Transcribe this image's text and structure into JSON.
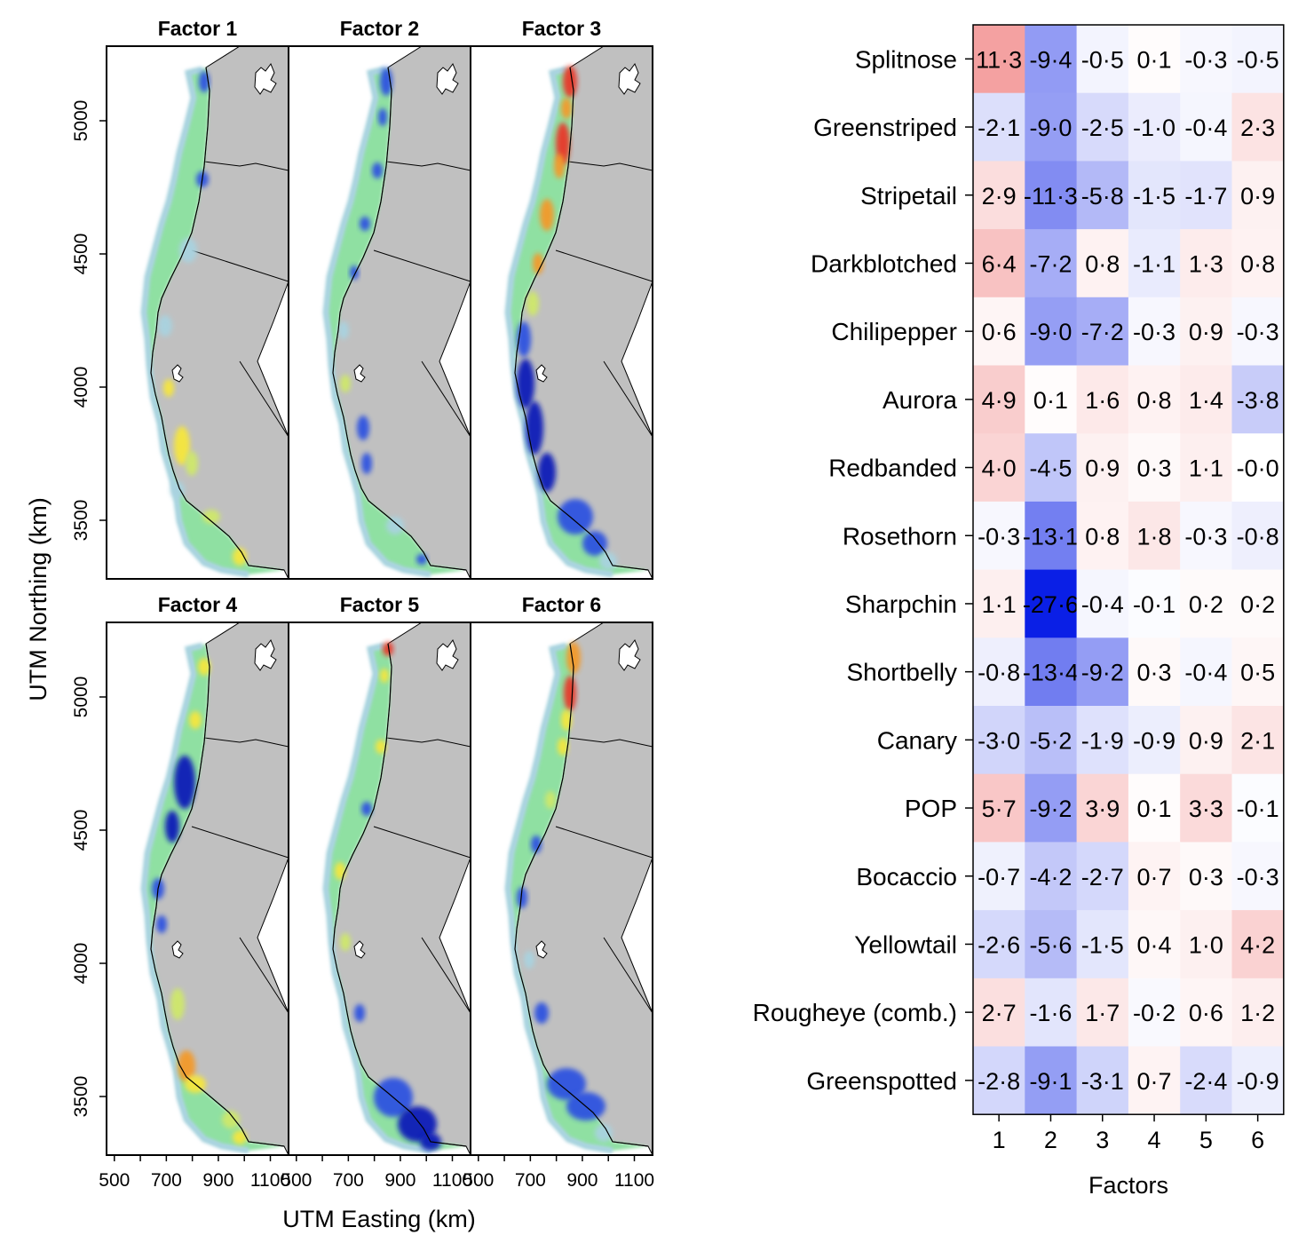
{
  "chart_data": [
    {
      "type": "map",
      "panels": [
        "Factor 1",
        "Factor 2",
        "Factor 3",
        "Factor 4",
        "Factor 5",
        "Factor 6"
      ],
      "xlabel": "UTM Easting (km)",
      "ylabel": "UTM Northing (km)",
      "x_ticks": [
        500,
        700,
        900,
        1100
      ],
      "y_ticks": [
        3500,
        4000,
        4500,
        5000
      ],
      "xlim": [
        470,
        1170
      ],
      "ylim": [
        3280,
        5280
      ],
      "colors": {
        "land": "#c0c0c0",
        "blue_dark": "#0a1fb8",
        "blue": "#2f52e0",
        "lightblue": "#a9d3e0",
        "green": "#8fe0a2",
        "yellowgreen": "#cfe86a",
        "yellow": "#f6e63c",
        "orange": "#f39a2c",
        "red": "#e8392a"
      }
    },
    {
      "type": "heatmap",
      "xlabel": "Factors",
      "ylabel": "",
      "columns": [
        "1",
        "2",
        "3",
        "4",
        "5",
        "6"
      ],
      "rows": [
        "Splitnose",
        "Greenstriped",
        "Stripetail",
        "Darkblotched",
        "Chilipepper",
        "Aurora",
        "Redbanded",
        "Rosethorn",
        "Sharpchin",
        "Shortbelly",
        "Canary",
        "POP",
        "Bocaccio",
        "Yellowtail",
        "Rougheye (comb.)",
        "Greenspotted"
      ],
      "values": [
        [
          11.3,
          -9.4,
          -0.5,
          0.1,
          -0.3,
          -0.5
        ],
        [
          -2.1,
          -9.0,
          -2.5,
          -1.0,
          -0.4,
          2.3
        ],
        [
          2.9,
          -11.3,
          -5.8,
          -1.5,
          -1.7,
          0.9
        ],
        [
          6.4,
          -7.2,
          0.8,
          -1.1,
          1.3,
          0.8
        ],
        [
          0.6,
          -9.0,
          -7.2,
          -0.3,
          0.9,
          -0.3
        ],
        [
          4.9,
          0.1,
          1.6,
          0.8,
          1.4,
          -3.8
        ],
        [
          4.0,
          -4.5,
          0.9,
          0.3,
          1.1,
          -0.0
        ],
        [
          -0.3,
          -13.1,
          0.8,
          1.8,
          -0.3,
          -0.8
        ],
        [
          1.1,
          -27.6,
          -0.4,
          -0.1,
          0.2,
          0.2
        ],
        [
          -0.8,
          -13.4,
          -9.2,
          0.3,
          -0.4,
          0.5
        ],
        [
          -3.0,
          -5.2,
          -1.9,
          -0.9,
          0.9,
          2.1
        ],
        [
          5.7,
          -9.2,
          3.9,
          0.1,
          3.3,
          -0.1
        ],
        [
          -0.7,
          -4.2,
          -2.7,
          0.7,
          0.3,
          -0.3
        ],
        [
          -2.6,
          -5.6,
          -1.5,
          0.4,
          1.0,
          4.2
        ],
        [
          2.7,
          -1.6,
          1.7,
          -0.2,
          0.6,
          1.2
        ],
        [
          -2.8,
          -9.1,
          -3.1,
          0.7,
          -2.4,
          -0.9
        ]
      ],
      "labels": [
        [
          "11·3",
          "-9·4",
          "-0·5",
          "0·1",
          "-0·3",
          "-0·5"
        ],
        [
          "-2·1",
          "-9·0",
          "-2·5",
          "-1·0",
          "-0·4",
          "2·3"
        ],
        [
          "2·9",
          "-11·3",
          "-5·8",
          "-1·5",
          "-1·7",
          "0·9"
        ],
        [
          "6·4",
          "-7·2",
          "0·8",
          "-1·1",
          "1·3",
          "0·8"
        ],
        [
          "0·6",
          "-9·0",
          "-7·2",
          "-0·3",
          "0·9",
          "-0·3"
        ],
        [
          "4·9",
          "0·1",
          "1·6",
          "0·8",
          "1·4",
          "-3·8"
        ],
        [
          "4·0",
          "-4·5",
          "0·9",
          "0·3",
          "1·1",
          "-0·0"
        ],
        [
          "-0·3",
          "-13·1",
          "0·8",
          "1·8",
          "-0·3",
          "-0·8"
        ],
        [
          "1·1",
          "-27·6",
          "-0·4",
          "-0·1",
          "0·2",
          "0·2"
        ],
        [
          "-0·8",
          "-13·4",
          "-9·2",
          "0·3",
          "-0·4",
          "0·5"
        ],
        [
          "-3·0",
          "-5·2",
          "-1·9",
          "-0·9",
          "0·9",
          "2·1"
        ],
        [
          "5·7",
          "-9·2",
          "3·9",
          "0·1",
          "3·3",
          "-0·1"
        ],
        [
          "-0·7",
          "-4·2",
          "-2·7",
          "0·7",
          "0·3",
          "-0·3"
        ],
        [
          "-2·6",
          "-5·6",
          "-1·5",
          "0·4",
          "1·0",
          "4·2"
        ],
        [
          "2·7",
          "-1·6",
          "1·7",
          "-0·2",
          "0·6",
          "1·2"
        ],
        [
          "-2·8",
          "-9·1",
          "-3·1",
          "0·7",
          "-2·4",
          "-0·9"
        ]
      ],
      "color_scale": {
        "negative": "#0a1fe6",
        "zero": "#ffffff",
        "positive": "#f07a7a",
        "neg_limit": -27.6,
        "pos_limit": 18
      }
    }
  ]
}
